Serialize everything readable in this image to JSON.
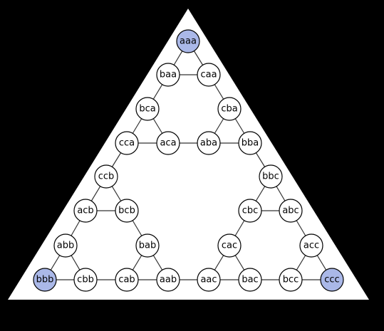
{
  "colors": {
    "background": "#000000",
    "triangle_fill": "#ffffff",
    "node_fill": "#ffffff",
    "node_highlight_fill": "#aab8e8",
    "node_stroke": "#000000",
    "edge_stroke": "#333333"
  },
  "nodes": [
    {
      "id": "aaa",
      "label": "aaa",
      "highlight": true
    },
    {
      "id": "baa",
      "label": "baa"
    },
    {
      "id": "caa",
      "label": "caa"
    },
    {
      "id": "bca",
      "label": "bca"
    },
    {
      "id": "cba",
      "label": "cba"
    },
    {
      "id": "cca",
      "label": "cca"
    },
    {
      "id": "aca",
      "label": "aca"
    },
    {
      "id": "aba",
      "label": "aba"
    },
    {
      "id": "bba",
      "label": "bba"
    },
    {
      "id": "ccb",
      "label": "ccb"
    },
    {
      "id": "bbc",
      "label": "bbc"
    },
    {
      "id": "acb",
      "label": "acb"
    },
    {
      "id": "bcb",
      "label": "bcb"
    },
    {
      "id": "cbc",
      "label": "cbc"
    },
    {
      "id": "abc",
      "label": "abc"
    },
    {
      "id": "abb",
      "label": "abb"
    },
    {
      "id": "bab",
      "label": "bab"
    },
    {
      "id": "cac",
      "label": "cac"
    },
    {
      "id": "acc",
      "label": "acc"
    },
    {
      "id": "bbb",
      "label": "bbb",
      "highlight": true
    },
    {
      "id": "cbb",
      "label": "cbb"
    },
    {
      "id": "cab",
      "label": "cab"
    },
    {
      "id": "aab",
      "label": "aab"
    },
    {
      "id": "aac",
      "label": "aac"
    },
    {
      "id": "bac",
      "label": "bac"
    },
    {
      "id": "bcc",
      "label": "bcc"
    },
    {
      "id": "ccc",
      "label": "ccc",
      "highlight": true
    }
  ],
  "edges": [
    [
      "aaa",
      "baa"
    ],
    [
      "aaa",
      "caa"
    ],
    [
      "baa",
      "caa"
    ],
    [
      "baa",
      "bca"
    ],
    [
      "caa",
      "cba"
    ],
    [
      "bca",
      "cca"
    ],
    [
      "bca",
      "aca"
    ],
    [
      "cca",
      "aca"
    ],
    [
      "cba",
      "aba"
    ],
    [
      "cba",
      "bba"
    ],
    [
      "aba",
      "bba"
    ],
    [
      "aca",
      "aba"
    ],
    [
      "cca",
      "ccb"
    ],
    [
      "bba",
      "bbc"
    ],
    [
      "ccb",
      "acb"
    ],
    [
      "ccb",
      "bcb"
    ],
    [
      "acb",
      "bcb"
    ],
    [
      "bbc",
      "cbc"
    ],
    [
      "bbc",
      "abc"
    ],
    [
      "cbc",
      "abc"
    ],
    [
      "acb",
      "abb"
    ],
    [
      "bcb",
      "bab"
    ],
    [
      "cbc",
      "cac"
    ],
    [
      "abc",
      "acc"
    ],
    [
      "abb",
      "bbb"
    ],
    [
      "abb",
      "cbb"
    ],
    [
      "bbb",
      "cbb"
    ],
    [
      "bab",
      "cab"
    ],
    [
      "bab",
      "aab"
    ],
    [
      "cab",
      "aab"
    ],
    [
      "cac",
      "aac"
    ],
    [
      "cac",
      "bac"
    ],
    [
      "aac",
      "bac"
    ],
    [
      "acc",
      "bcc"
    ],
    [
      "acc",
      "ccc"
    ],
    [
      "bcc",
      "ccc"
    ],
    [
      "cbb",
      "cab"
    ],
    [
      "aab",
      "aac"
    ],
    [
      "bac",
      "bcc"
    ]
  ]
}
